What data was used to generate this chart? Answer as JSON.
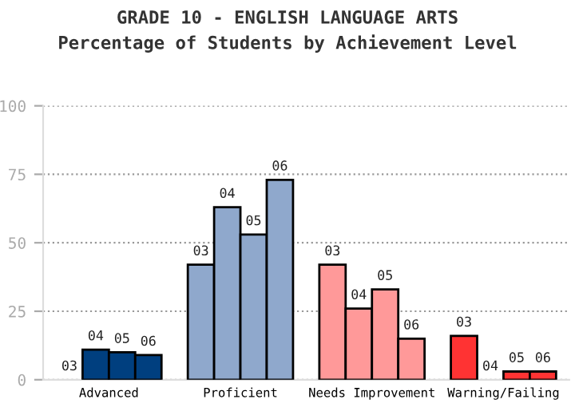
{
  "chart_data": {
    "type": "bar",
    "title": "GRADE 10 - ENGLISH LANGUAGE ARTS",
    "subtitle": "Percentage of Students by Achievement Level",
    "categories": [
      "Advanced",
      "Proficient",
      "Needs Improvement",
      "Warning/Failing"
    ],
    "series": [
      {
        "name": "03",
        "colors": [
          "#003f7f",
          "#8fa8cc",
          "#ff9999",
          "#ff3333"
        ],
        "values": [
          0,
          42,
          42,
          16
        ]
      },
      {
        "name": "04",
        "colors": [
          "#003f7f",
          "#8fa8cc",
          "#ff9999",
          "#ff3333"
        ],
        "values": [
          11,
          63,
          26,
          0
        ]
      },
      {
        "name": "05",
        "colors": [
          "#003f7f",
          "#8fa8cc",
          "#ff9999",
          "#ff3333"
        ],
        "values": [
          10,
          53,
          33,
          3
        ]
      },
      {
        "name": "06",
        "colors": [
          "#003f7f",
          "#8fa8cc",
          "#ff9999",
          "#ff3333"
        ],
        "values": [
          9,
          73,
          15,
          3
        ]
      }
    ],
    "ylim": [
      0,
      100
    ],
    "yticks": [
      0,
      25,
      50,
      75,
      100
    ],
    "grid": "y"
  }
}
